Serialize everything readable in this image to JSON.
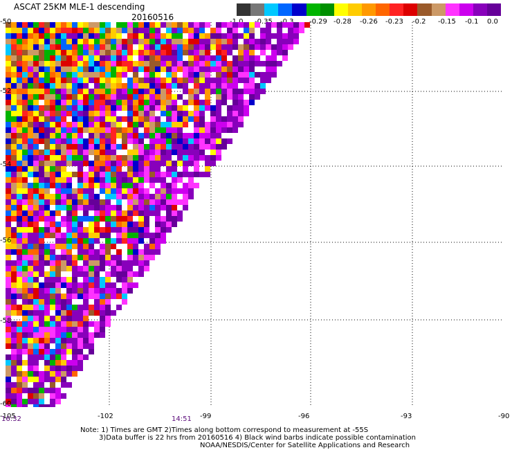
{
  "header": {
    "title": "ASCAT 25KM MLE-1 descending",
    "date": "20160516"
  },
  "colorbar": {
    "colors": [
      "#333333",
      "#777777",
      "#00c8ff",
      "#0066ff",
      "#0000cc",
      "#00b400",
      "#009000",
      "#ffff00",
      "#ffcc00",
      "#ff9900",
      "#ff6600",
      "#ff2222",
      "#dd0000",
      "#9a5a2a",
      "#cc9966",
      "#ff33ff",
      "#cc00ee",
      "#8800bb",
      "#660099"
    ],
    "labels": [
      "-1.0",
      "-0.35",
      "-0.3",
      "-0.29",
      "-0.28",
      "-0.26",
      "-0.23",
      "-0.2",
      "-0.15",
      "-0.1",
      "0.0"
    ]
  },
  "axes": {
    "lat_labels": [
      "-50",
      "-52",
      "-54",
      "-56",
      "-58",
      "-60"
    ],
    "lon_labels": [
      "-105",
      "-102",
      "-99",
      "-96",
      "-93",
      "-90"
    ]
  },
  "times": [
    "16:32",
    "14:51"
  ],
  "notes": {
    "line1": "Note: 1) Times are GMT 2)Times along bottom correspond to measurement at -55S",
    "line2": "3)Data buffer is 22 hrs from 20160516 4) Black wind barbs indicate possible contamination",
    "line3": "NOAA/NESDIS/Center for Satellite Applications and Research"
  },
  "map_data": {
    "type": "heatmap",
    "lat_range": [
      -60,
      -50
    ],
    "lon_range": [
      -105,
      -90
    ],
    "grid": true,
    "swath_edge": "diagonal from upper-right to lower-left",
    "variable": "MLE-1"
  }
}
